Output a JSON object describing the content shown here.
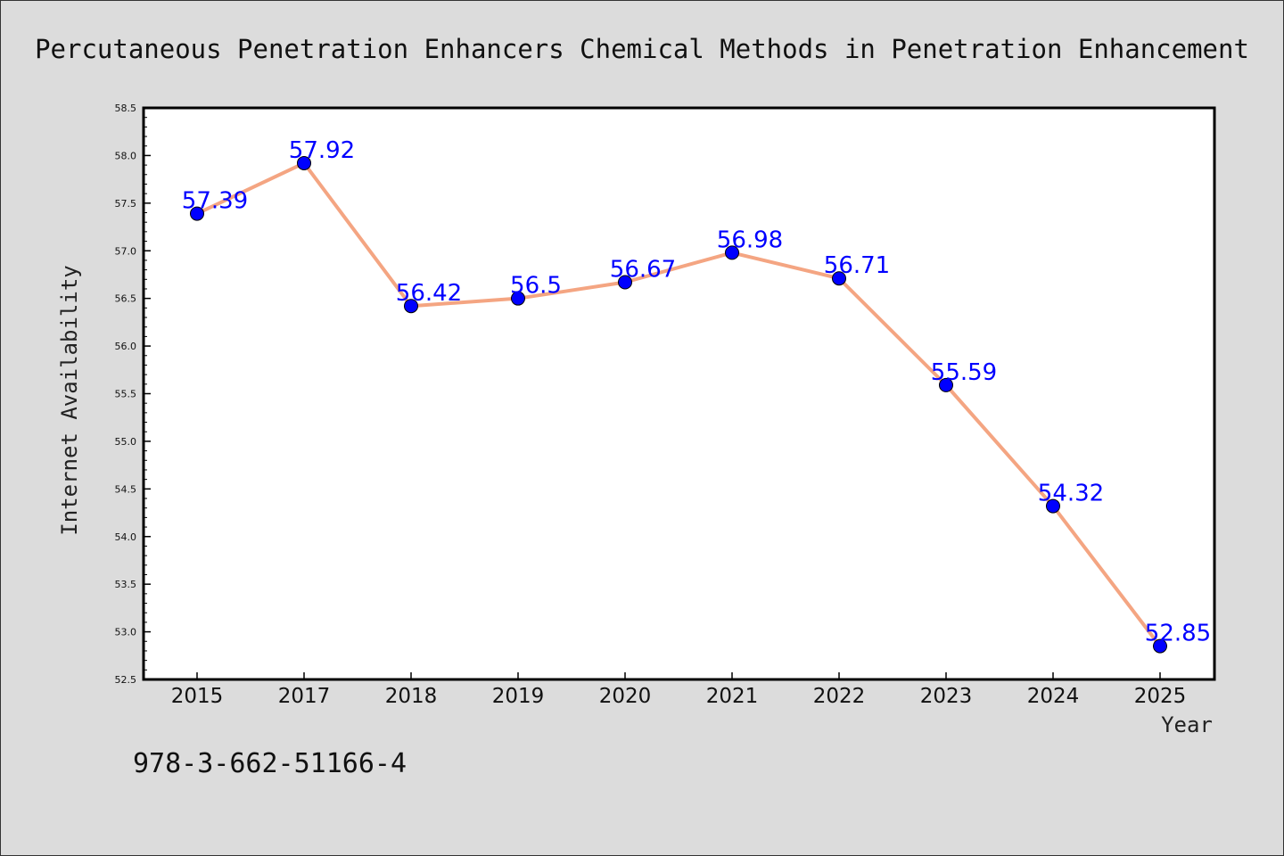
{
  "chart_data": {
    "type": "line",
    "title": "Percutaneous Penetration Enhancers Chemical Methods in Penetration Enhancement",
    "xlabel": "Year",
    "ylabel": "Internet Availability",
    "categories": [
      "2015",
      "2017",
      "2018",
      "2019",
      "2020",
      "2021",
      "2022",
      "2023",
      "2024",
      "2025"
    ],
    "series": [
      {
        "values": [
          57.39,
          57.92,
          56.42,
          56.5,
          56.67,
          56.98,
          56.71,
          55.59,
          54.32,
          52.85
        ]
      }
    ],
    "data_labels": [
      "57.39",
      "57.92",
      "56.42",
      "56.5",
      "56.67",
      "56.98",
      "56.71",
      "55.59",
      "54.32",
      "52.85"
    ],
    "ylim": [
      52.5,
      58.5
    ],
    "yticks": [
      "52.5",
      "53.0",
      "53.5",
      "54.0",
      "54.5",
      "55.0",
      "55.5",
      "56.0",
      "56.5",
      "57.0",
      "57.5",
      "58.0",
      "58.5"
    ],
    "grid": false,
    "legend": "none",
    "colors": {
      "line": "#f4a582",
      "marker": "#0000ff",
      "data_label": "#0000ff",
      "plot_background": "#ffffff",
      "figure_background": "#dcdcdc"
    }
  },
  "footer_text": "978-3-662-51166-4"
}
